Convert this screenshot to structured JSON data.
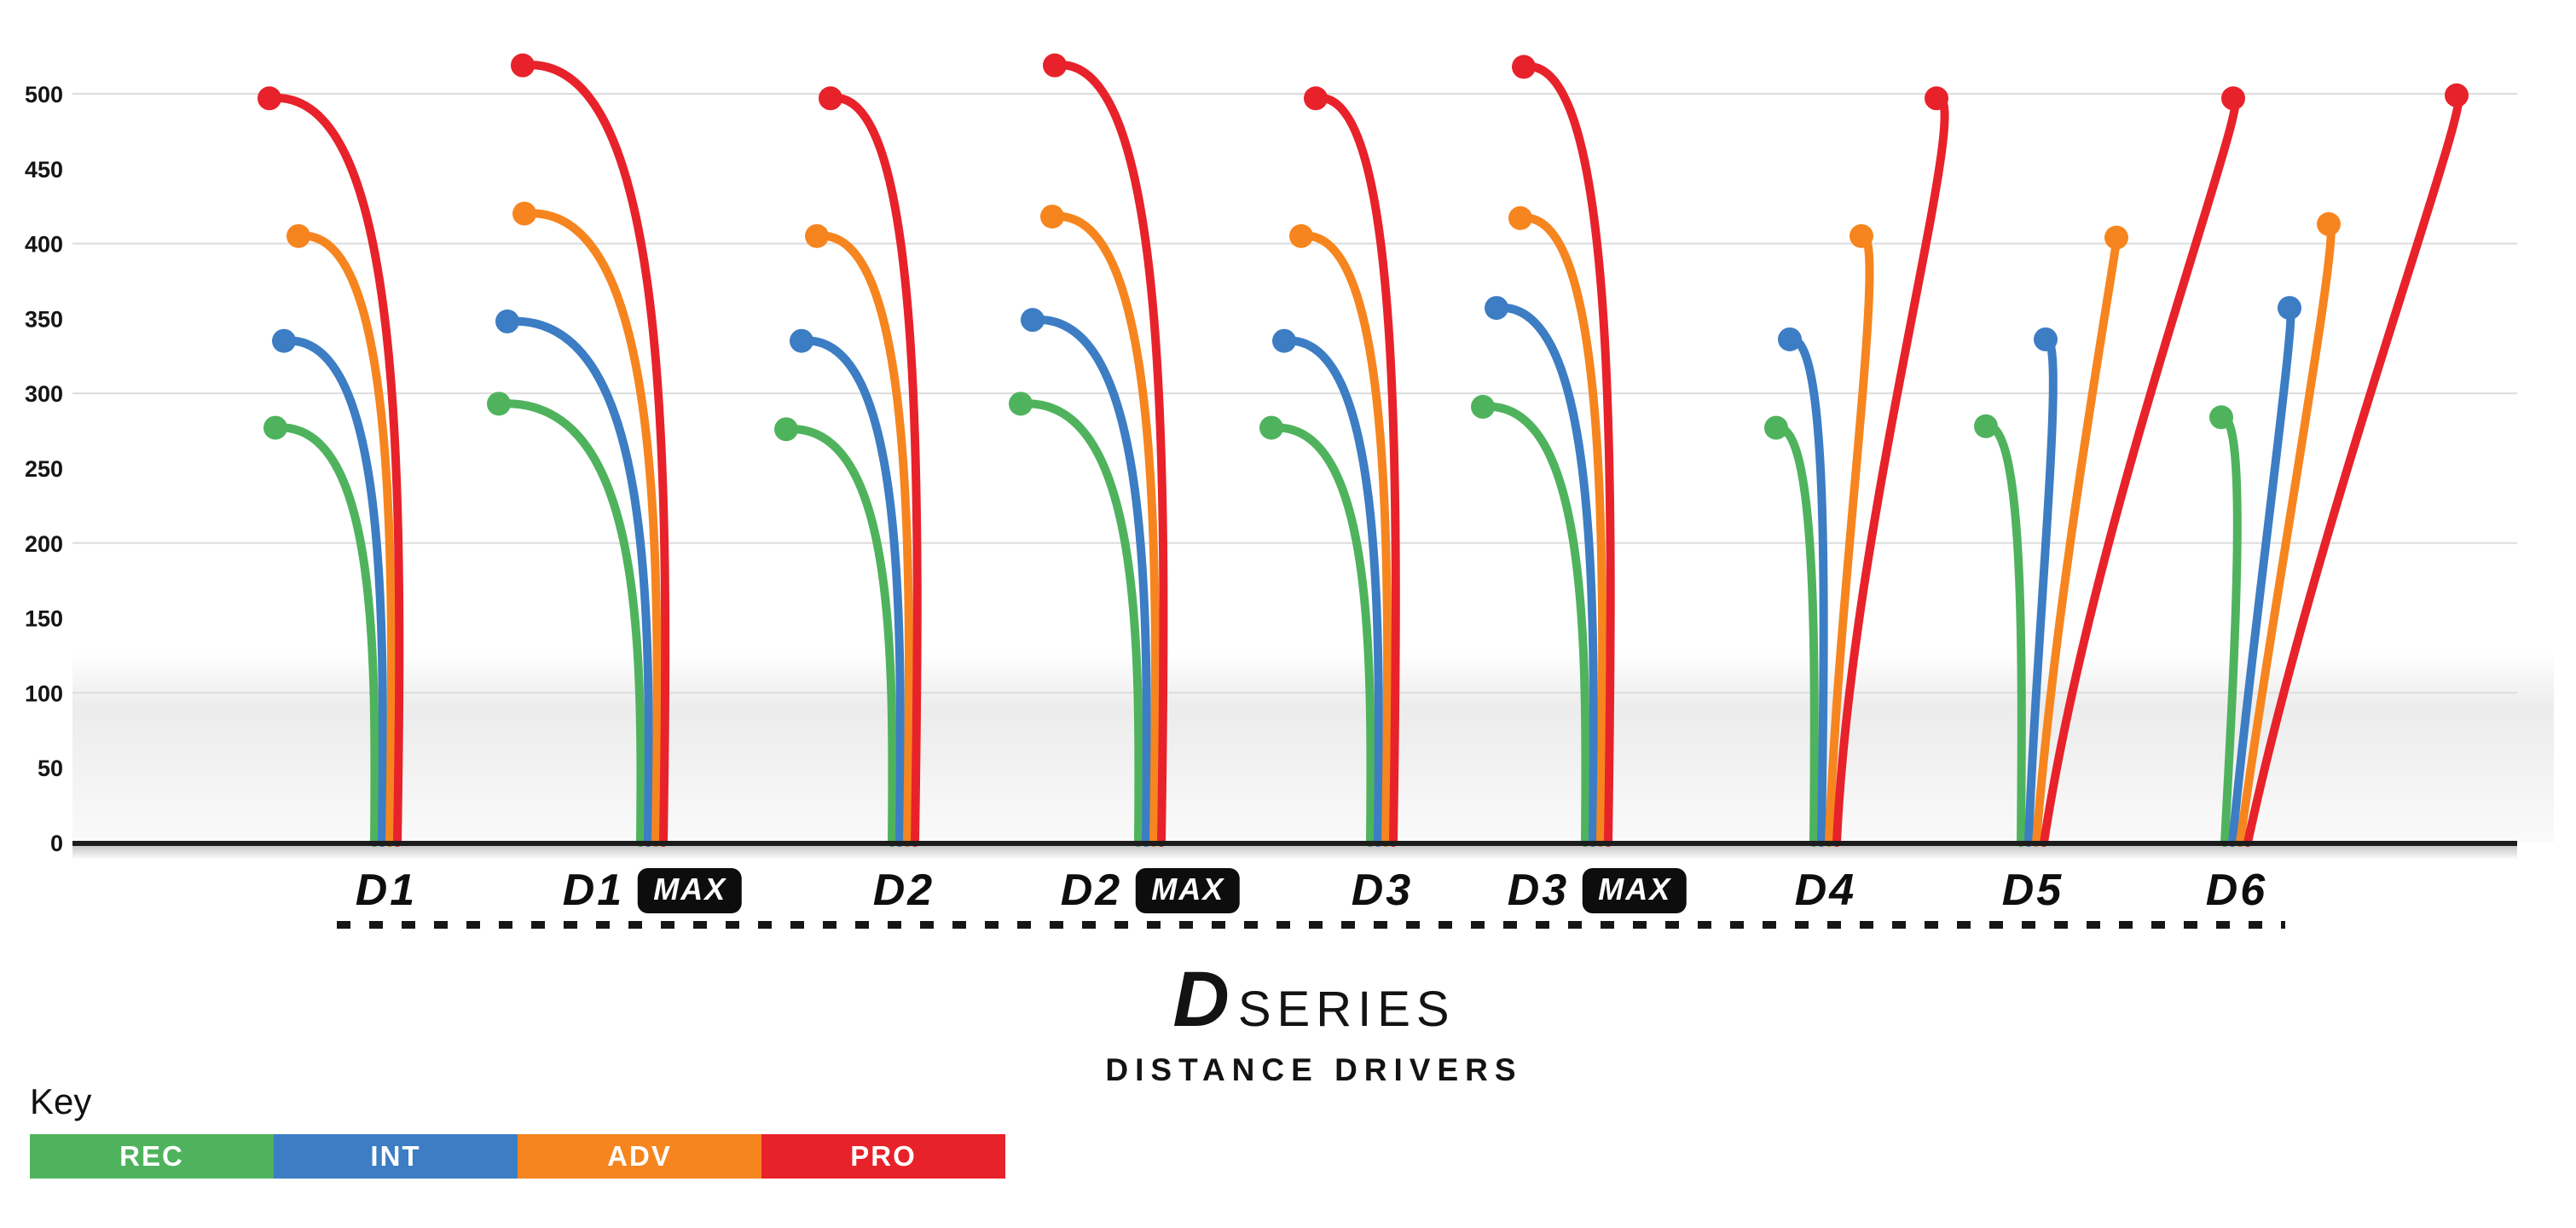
{
  "chart_data": {
    "type": "line",
    "title": "D SERIES",
    "subtitle": "DISTANCE DRIVERS",
    "logo": {
      "d": "D",
      "series": "SERIES",
      "subtitle": "DISTANCE DRIVERS"
    },
    "max_label": "MAX",
    "yticks": [
      0,
      50,
      100,
      150,
      200,
      250,
      300,
      350,
      400,
      450,
      500
    ],
    "grid_values": [
      100,
      200,
      300,
      400,
      500
    ],
    "ylim": [
      0,
      530
    ],
    "grid": true,
    "legend_position": "bottom-left",
    "levels": [
      {
        "label": "REC",
        "color": "#4fb35d"
      },
      {
        "label": "INT",
        "color": "#3c7dc4"
      },
      {
        "label": "ADV",
        "color": "#f6851f"
      },
      {
        "label": "PRO",
        "color": "#e8222a"
      }
    ],
    "discs": [
      {
        "label": "D1",
        "max": false,
        "anchor": 453,
        "flights": [
          {
            "level": "REC",
            "end": 277,
            "x0": -14,
            "t1": 2,
            "t2": 4,
            "x1": -130
          },
          {
            "level": "INT",
            "end": 335,
            "x0": -5,
            "t1": 3,
            "t2": 6,
            "x1": -120
          },
          {
            "level": "ADV",
            "end": 405,
            "x0": 4,
            "t1": 5,
            "t2": 10,
            "x1": -103
          },
          {
            "level": "PRO",
            "end": 497,
            "x0": 13,
            "t1": 6,
            "t2": 12,
            "x1": -137
          }
        ]
      },
      {
        "label": "D1",
        "max": true,
        "anchor": 765,
        "flights": [
          {
            "level": "REC",
            "end": 293,
            "x0": -14,
            "t1": 2,
            "t2": 4,
            "x1": -180
          },
          {
            "level": "INT",
            "end": 348,
            "x0": -5,
            "t1": 3,
            "t2": 6,
            "x1": -170
          },
          {
            "level": "ADV",
            "end": 420,
            "x0": 4,
            "t1": 5,
            "t2": 10,
            "x1": -150
          },
          {
            "level": "PRO",
            "end": 519,
            "x0": 13,
            "t1": 6,
            "t2": 12,
            "x1": -152
          }
        ]
      },
      {
        "label": "D2",
        "max": false,
        "anchor": 1060,
        "flights": [
          {
            "level": "REC",
            "end": 276,
            "x0": -14,
            "t1": 2,
            "t2": 4,
            "x1": -138
          },
          {
            "level": "INT",
            "end": 335,
            "x0": -5,
            "t1": 3,
            "t2": 6,
            "x1": -120
          },
          {
            "level": "ADV",
            "end": 405,
            "x0": 4,
            "t1": 5,
            "t2": 10,
            "x1": -102
          },
          {
            "level": "PRO",
            "end": 497,
            "x0": 13,
            "t1": 6,
            "t2": 12,
            "x1": -86
          }
        ]
      },
      {
        "label": "D2",
        "max": true,
        "anchor": 1349,
        "flights": [
          {
            "level": "REC",
            "end": 293,
            "x0": -14,
            "t1": 2,
            "t2": 4,
            "x1": -152
          },
          {
            "level": "INT",
            "end": 349,
            "x0": -5,
            "t1": 3,
            "t2": 6,
            "x1": -138
          },
          {
            "level": "ADV",
            "end": 418,
            "x0": 4,
            "t1": 5,
            "t2": 10,
            "x1": -115
          },
          {
            "level": "PRO",
            "end": 519,
            "x0": 13,
            "t1": 6,
            "t2": 12,
            "x1": -112
          }
        ]
      },
      {
        "label": "D3",
        "max": false,
        "anchor": 1621,
        "flights": [
          {
            "level": "REC",
            "end": 277,
            "x0": -14,
            "t1": 2,
            "t2": 4,
            "x1": -130
          },
          {
            "level": "INT",
            "end": 335,
            "x0": -5,
            "t1": 3,
            "t2": 6,
            "x1": -115
          },
          {
            "level": "ADV",
            "end": 405,
            "x0": 4,
            "t1": 5,
            "t2": 10,
            "x1": -95
          },
          {
            "level": "PRO",
            "end": 497,
            "x0": 13,
            "t1": 6,
            "t2": 12,
            "x1": -78
          }
        ]
      },
      {
        "label": "D3",
        "max": true,
        "anchor": 1873,
        "flights": [
          {
            "level": "REC",
            "end": 291,
            "x0": -14,
            "t1": 2,
            "t2": 4,
            "x1": -134
          },
          {
            "level": "INT",
            "end": 357,
            "x0": -5,
            "t1": 3,
            "t2": 6,
            "x1": -118
          },
          {
            "level": "ADV",
            "end": 417,
            "x0": 4,
            "t1": 5,
            "t2": 10,
            "x1": -90
          },
          {
            "level": "PRO",
            "end": 518,
            "x0": 13,
            "t1": 6,
            "t2": 12,
            "x1": -86
          }
        ]
      },
      {
        "label": "D4",
        "max": false,
        "anchor": 2141,
        "flights": [
          {
            "level": "REC",
            "end": 277,
            "x0": -14,
            "t1": 2,
            "t2": 4,
            "x1": -58
          },
          {
            "level": "INT",
            "end": 336,
            "x0": -5,
            "t1": 4,
            "t2": 10,
            "x1": -42
          },
          {
            "level": "ADV",
            "end": 405,
            "x0": 4,
            "t1": 12,
            "t2": 70,
            "x1": 42
          },
          {
            "level": "PRO",
            "end": 497,
            "x0": 13,
            "t1": 18,
            "t2": 165,
            "x1": 130
          }
        ]
      },
      {
        "label": "D5",
        "max": false,
        "anchor": 2384,
        "flights": [
          {
            "level": "REC",
            "end": 278,
            "x0": -14,
            "t1": 2,
            "t2": 4,
            "x1": -55
          },
          {
            "level": "INT",
            "end": 336,
            "x0": -5,
            "t1": 10,
            "t2": 45,
            "x1": 15
          },
          {
            "level": "ADV",
            "end": 404,
            "x0": 4,
            "t1": 25,
            "t2": 100,
            "x1": 98
          },
          {
            "level": "PRO",
            "end": 497,
            "x0": 13,
            "t1": 60,
            "t2": 250,
            "x1": 235
          }
        ]
      },
      {
        "label": "D6",
        "max": false,
        "anchor": 2623,
        "flights": [
          {
            "level": "REC",
            "end": 284,
            "x0": -14,
            "t1": 12,
            "t2": 28,
            "x1": -18
          },
          {
            "level": "INT",
            "end": 357,
            "x0": -5,
            "t1": 28,
            "t2": 78,
            "x1": 62
          },
          {
            "level": "ADV",
            "end": 413,
            "x0": 4,
            "t1": 46,
            "t2": 122,
            "x1": 108
          },
          {
            "level": "PRO",
            "end": 499,
            "x0": 13,
            "t1": 85,
            "t2": 272,
            "x1": 258
          }
        ]
      }
    ]
  },
  "key": {
    "title": "Key"
  }
}
